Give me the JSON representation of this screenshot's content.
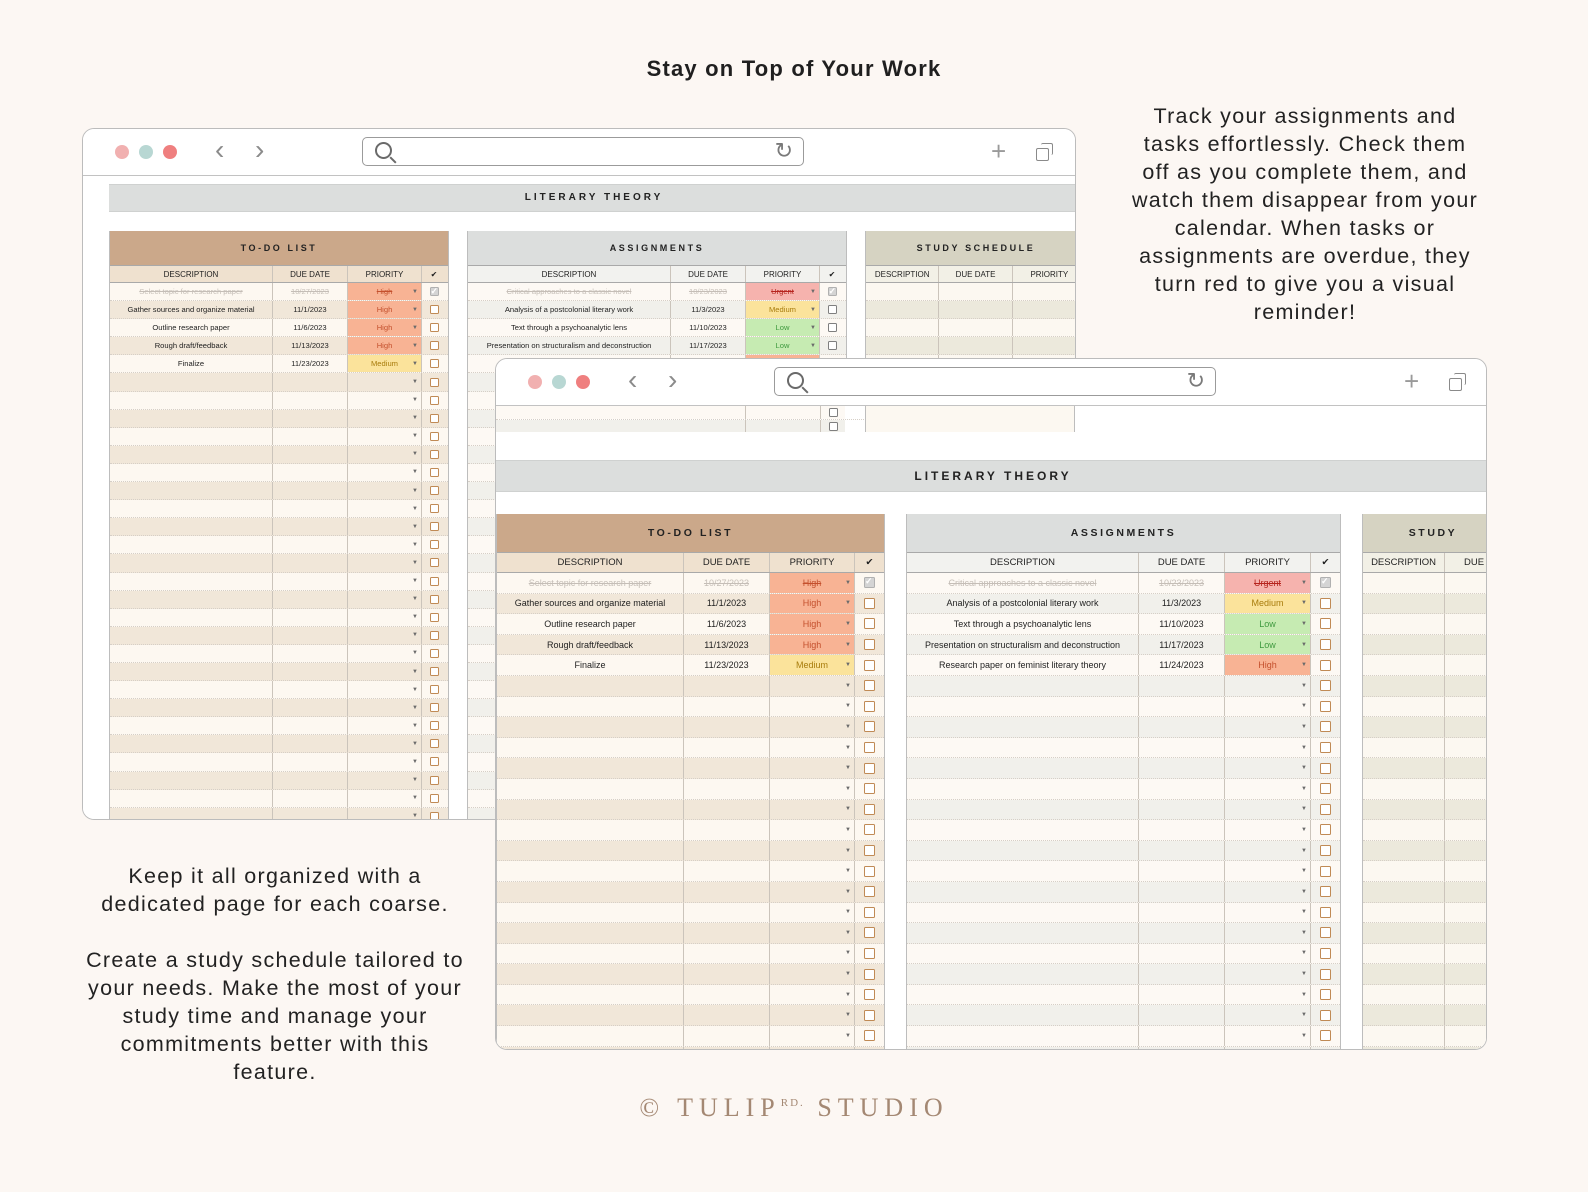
{
  "headline": "Stay on Top of Your Work",
  "blurb_right": "Track your assignments and tasks effortlessly. Check them off as you complete them, and watch them disappear from your calendar. When tasks or assignments are overdue, they turn red to give you a visual reminder!",
  "blurb_left_1": "Keep it all organized with a dedicated page for each coarse.",
  "blurb_left_2": "Create a study schedule tailored to your needs. Make the most of your study time and manage your commitments better with this feature.",
  "brand": {
    "prefix": "© TULIP",
    "sup": "RD.",
    "suffix": " STUDIO"
  },
  "window_controls": {
    "dot_colors": [
      "#f1b0b0",
      "#b8d7d3",
      "#ef7f7f"
    ]
  },
  "icons": {
    "back": "chevron-left-icon",
    "forward": "chevron-right-icon",
    "search": "search-icon",
    "refresh": "refresh-icon",
    "new_tab": "plus-icon",
    "tabs": "tabs-icon"
  },
  "course_title": "LITERARY THEORY",
  "columns": {
    "description": "DESCRIPTION",
    "due_date": "DUE DATE",
    "priority": "PRIORITY",
    "check": "✔"
  },
  "colors": {
    "todo_header": "#cba88a",
    "todo_colhead": "#efe1cf",
    "todo_row_a": "#fdf8f1",
    "todo_row_b": "#f1e7d9",
    "assign_header": "#dcdedd",
    "assign_colhead": "#f2f2ef",
    "assign_row_a": "#fdf9f4",
    "assign_row_b": "#f1f0eb",
    "study_header": "#d6d3c2",
    "study_colhead": "#f2f0e6",
    "study_row_a": "#fcf8f1",
    "study_row_b": "#ece9dc"
  },
  "priority_colors": {
    "Urgent": {
      "bg": "#f6b3ae",
      "fg": "#b6241e"
    },
    "High": {
      "bg": "#f8b394",
      "fg": "#c4502d"
    },
    "Medium": {
      "bg": "#fbe39b",
      "fg": "#a87c0c"
    },
    "Low": {
      "bg": "#c6ebb2",
      "fg": "#3f9a3f"
    }
  },
  "todo": {
    "title": "TO-DO LIST",
    "rows": [
      {
        "description": "Select topic for research paper",
        "due_date": "10/27/2023",
        "priority": "High",
        "done": true
      },
      {
        "description": "Gather sources and organize material",
        "due_date": "11/1/2023",
        "priority": "High",
        "done": false
      },
      {
        "description": "Outline research paper",
        "due_date": "11/6/2023",
        "priority": "High",
        "done": false
      },
      {
        "description": "Rough draft/feedback",
        "due_date": "11/13/2023",
        "priority": "High",
        "done": false
      },
      {
        "description": "Finalize",
        "due_date": "11/23/2023",
        "priority": "Medium",
        "done": false
      }
    ]
  },
  "assignments": {
    "title": "ASSIGNMENTS",
    "rows": [
      {
        "description": "Critical approaches to a classic novel",
        "due_date": "10/23/2023",
        "priority": "Urgent",
        "done": true
      },
      {
        "description": "Analysis of a postcolonial literary work",
        "due_date": "11/3/2023",
        "priority": "Medium",
        "done": false
      },
      {
        "description": "Text through a psychoanalytic lens",
        "due_date": "11/10/2023",
        "priority": "Low",
        "done": false
      },
      {
        "description": "Presentation on structuralism and deconstruction",
        "due_date": "11/17/2023",
        "priority": "Low",
        "done": false
      },
      {
        "description": "Research paper on feminist literary theory",
        "due_date": "11/24/2023",
        "priority": "High",
        "done": false
      }
    ]
  },
  "study_schedule": {
    "title": "STUDY SCHEDULE",
    "front_title": "STUDY",
    "front_date_head": "DUE"
  }
}
